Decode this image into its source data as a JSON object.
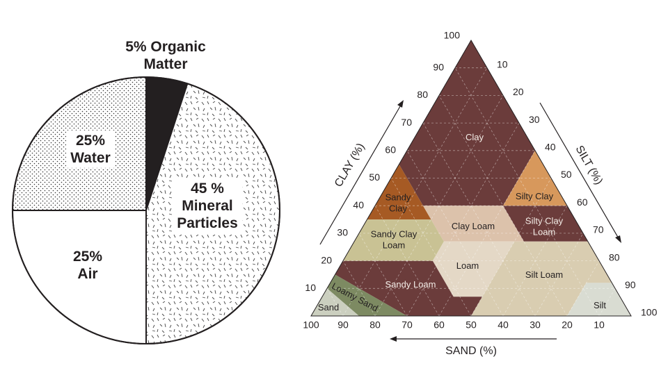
{
  "chart_data": [
    {
      "type": "pie",
      "values": [
        5,
        45,
        25,
        25
      ],
      "value_labels": [
        "5% Organic Matter",
        "45 % Mineral Particles",
        "25% Air",
        "25% Water"
      ],
      "colors": [
        "#231f20",
        "#ffffff",
        "#ffffff",
        "#ffffff"
      ],
      "patterns": [
        "solid",
        "dashes",
        "none",
        "dots"
      ]
    },
    {
      "type": "ternary",
      "axes": {
        "clay": {
          "label": "CLAY (%)",
          "ticks": [
            10,
            20,
            30,
            40,
            50,
            60,
            70,
            80,
            90,
            100
          ]
        },
        "silt": {
          "label": "SILT (%)",
          "ticks": [
            10,
            20,
            30,
            40,
            50,
            60,
            70,
            80,
            90,
            100
          ]
        },
        "sand": {
          "label": "SAND (%)",
          "ticks": [
            10,
            20,
            30,
            40,
            50,
            60,
            70,
            80,
            90,
            100
          ]
        }
      },
      "grid": true,
      "regions": [
        "Clay",
        "Sandy Clay",
        "Silty Clay",
        "Clay Loam",
        "Silty Clay Loam",
        "Sandy Clay Loam",
        "Loam",
        "Silt Loam",
        "Sandy Loam",
        "Loamy Sand",
        "Sand",
        "Silt"
      ]
    }
  ]
}
